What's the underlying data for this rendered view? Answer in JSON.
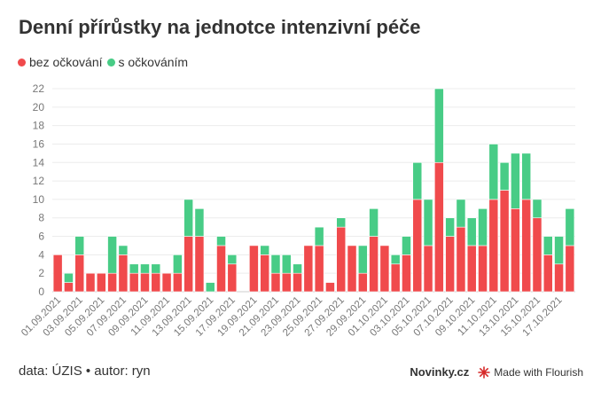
{
  "title": "Denní přírůstky na jednotce intenzivní péče",
  "legend": [
    {
      "label": "bez očkování",
      "color": "#f04a4c"
    },
    {
      "label": "s očkováním",
      "color": "#48cc86"
    }
  ],
  "footer": {
    "source": "data: ÚZIS • autor: ryn",
    "brand": "Novinky.cz",
    "made_with": "Made with Flourish"
  },
  "chart_data": {
    "type": "bar",
    "stacked": true,
    "ylim": [
      0,
      22
    ],
    "yticks": [
      0,
      2,
      4,
      6,
      8,
      10,
      12,
      14,
      16,
      18,
      20,
      22
    ],
    "grid": true,
    "categories": [
      "01.09.2021",
      "02.09.2021",
      "03.09.2021",
      "04.09.2021",
      "05.09.2021",
      "06.09.2021",
      "07.09.2021",
      "08.09.2021",
      "09.09.2021",
      "10.09.2021",
      "11.09.2021",
      "12.09.2021",
      "13.09.2021",
      "14.09.2021",
      "15.09.2021",
      "16.09.2021",
      "17.09.2021",
      "18.09.2021",
      "19.09.2021",
      "20.09.2021",
      "21.09.2021",
      "22.09.2021",
      "23.09.2021",
      "24.09.2021",
      "25.09.2021",
      "26.09.2021",
      "27.09.2021",
      "28.09.2021",
      "29.09.2021",
      "30.09.2021",
      "01.10.2021",
      "02.10.2021",
      "03.10.2021",
      "04.10.2021",
      "05.10.2021",
      "06.10.2021",
      "07.10.2021",
      "08.10.2021",
      "09.10.2021",
      "10.10.2021",
      "11.10.2021",
      "12.10.2021",
      "13.10.2021",
      "14.10.2021",
      "15.10.2021",
      "16.10.2021",
      "17.10.2021",
      "18.10.2021"
    ],
    "x_tick_labels": [
      "01.09.2021",
      "03.09.2021",
      "05.09.2021",
      "07.09.2021",
      "09.09.2021",
      "11.09.2021",
      "13.09.2021",
      "15.09.2021",
      "17.09.2021",
      "19.09.2021",
      "21.09.2021",
      "23.09.2021",
      "25.09.2021",
      "27.09.2021",
      "29.09.2021",
      "01.10.2021",
      "03.10.2021",
      "05.10.2021",
      "07.10.2021",
      "09.10.2021",
      "11.10.2021",
      "13.10.2021",
      "15.10.2021",
      "17.10.2021"
    ],
    "series": [
      {
        "name": "bez očkování",
        "color": "#f04a4c",
        "values": [
          4,
          1,
          4,
          2,
          2,
          2,
          4,
          2,
          2,
          2,
          2,
          2,
          6,
          6,
          0,
          5,
          3,
          0,
          5,
          4,
          2,
          2,
          2,
          5,
          5,
          1,
          7,
          5,
          2,
          6,
          5,
          3,
          4,
          10,
          5,
          14,
          6,
          7,
          5,
          5,
          10,
          11,
          9,
          10,
          8,
          4,
          3,
          5
        ]
      },
      {
        "name": "s očkováním",
        "color": "#48cc86",
        "values": [
          0,
          1,
          2,
          0,
          0,
          4,
          1,
          1,
          1,
          1,
          0,
          2,
          4,
          3,
          1,
          1,
          1,
          0,
          0,
          1,
          2,
          2,
          1,
          0,
          2,
          0,
          1,
          0,
          3,
          3,
          0,
          1,
          2,
          4,
          5,
          8,
          2,
          3,
          3,
          4,
          6,
          3,
          6,
          5,
          2,
          2,
          3,
          4
        ]
      }
    ]
  }
}
